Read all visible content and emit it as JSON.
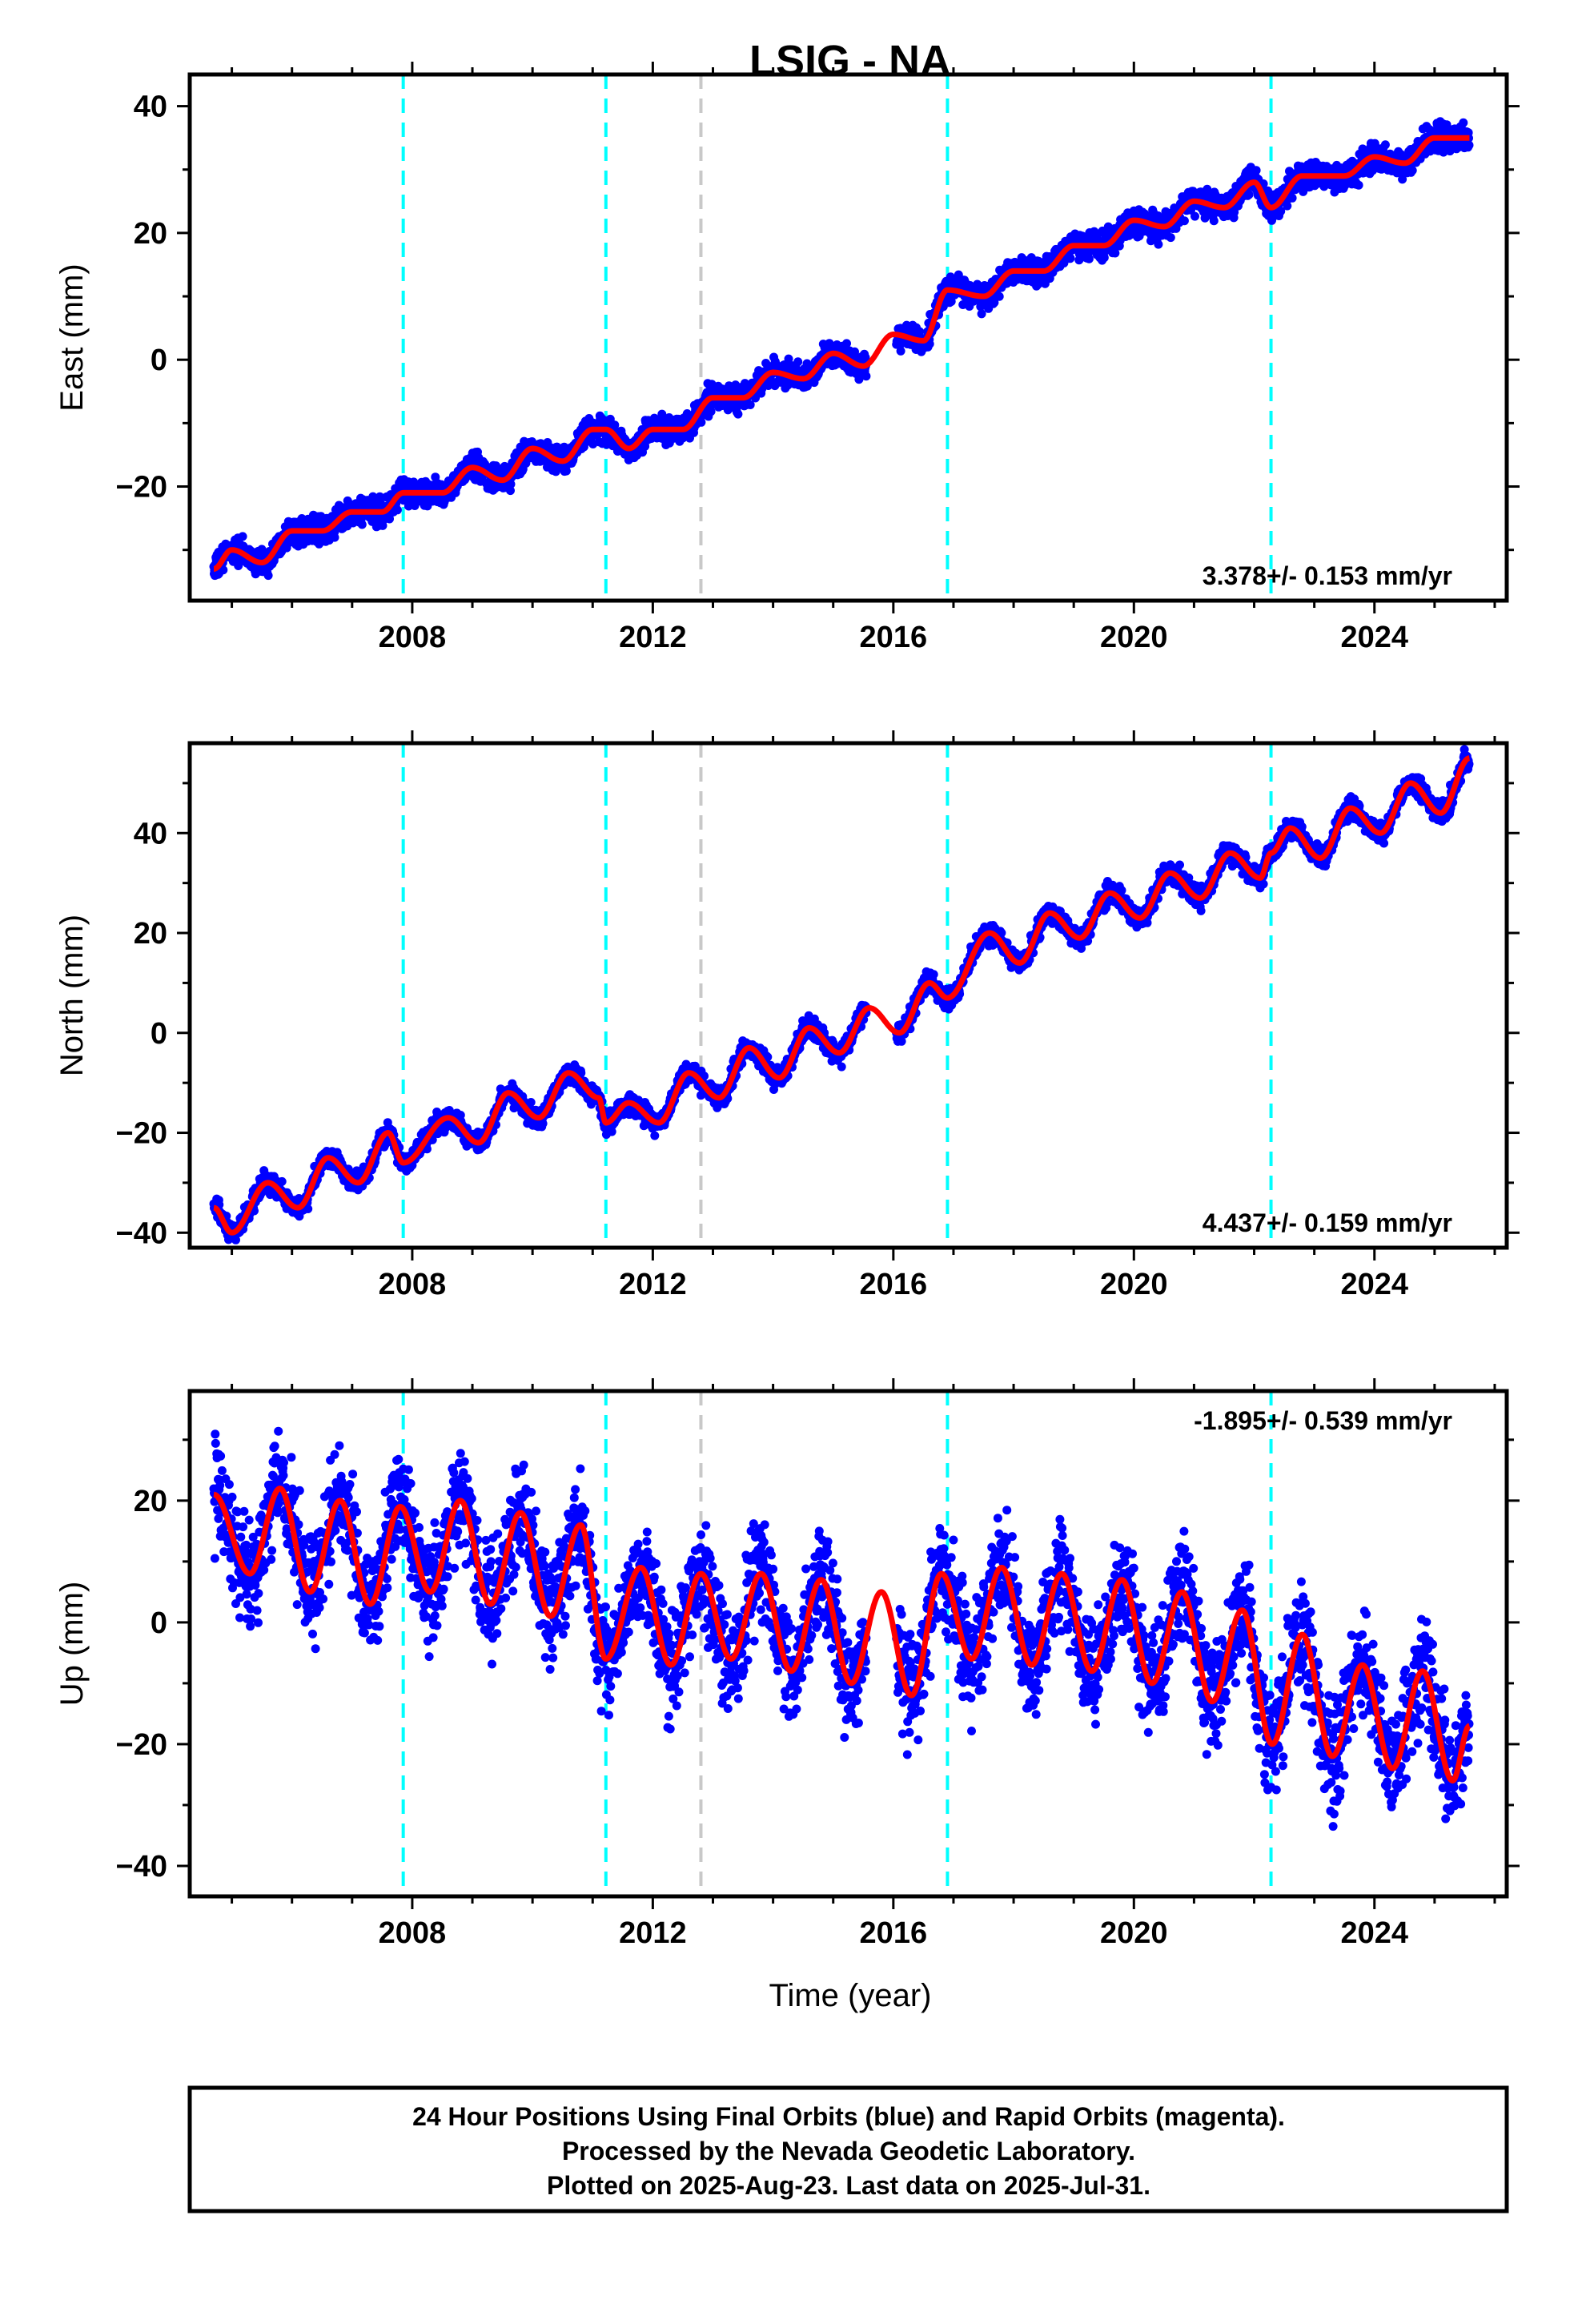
{
  "title": "LSIG - NA",
  "xlabel": "Time (year)",
  "footer": {
    "line1": "24 Hour Positions Using Final Orbits (blue) and Rapid Orbits (magenta).",
    "line2": "Processed by the Nevada Geodetic Laboratory.",
    "line3": "Plotted on 2025-Aug-23. Last data on 2025-Jul-31."
  },
  "colors": {
    "data": "#0000ff",
    "model": "#ff0000",
    "equipment_change": "#00ffff",
    "earthquake": "#c8c8c8",
    "frame": "#000000"
  },
  "chart_data": [
    {
      "type": "scatter",
      "component": "east",
      "ylabel": "East (mm)",
      "rate_text": "3.378+/- 0.153 mm/yr",
      "xlim": [
        2004.3,
        2026.2
      ],
      "ylim": [
        -38,
        45
      ],
      "xticks": [
        2008,
        2012,
        2016,
        2020,
        2024
      ],
      "xtick_labels": [
        "2008",
        "2012",
        "2016",
        "2020",
        "2024"
      ],
      "yticks": [
        -20,
        0,
        20,
        40
      ],
      "ytick_labels": [
        "−20",
        "0",
        "20",
        "40"
      ],
      "cyan_lines": [
        2007.85,
        2011.22,
        2016.9,
        2022.28
      ],
      "gray_lines": [
        2012.8
      ],
      "x": [
        2004.7,
        2005.0,
        2005.5,
        2006.0,
        2006.5,
        2007.0,
        2007.5,
        2007.85,
        2008.5,
        2009.0,
        2009.5,
        2010.0,
        2010.5,
        2011.0,
        2011.22,
        2011.6,
        2012.0,
        2012.5,
        2013.0,
        2013.5,
        2014.0,
        2014.5,
        2015.0,
        2015.5,
        2016.0,
        2016.5,
        2016.9,
        2017.5,
        2018.0,
        2018.5,
        2019.0,
        2019.5,
        2020.0,
        2020.5,
        2021.0,
        2021.5,
        2022.0,
        2022.28,
        2022.8,
        2023.5,
        2024.0,
        2024.5,
        2025.0,
        2025.58
      ],
      "series": [
        {
          "values": [
            -33,
            -30,
            -32,
            -27,
            -27,
            -24,
            -24,
            -21,
            -21,
            -17,
            -19,
            -14,
            -16,
            -11,
            -11,
            -14,
            -11,
            -11,
            -6,
            -6,
            -2,
            -3,
            1,
            -1,
            4,
            3,
            11,
            10,
            14,
            14,
            18,
            18,
            22,
            21,
            25,
            24,
            28,
            24,
            29,
            29,
            32,
            31,
            35,
            35
          ]
        }
      ]
    },
    {
      "type": "scatter",
      "component": "north",
      "ylabel": "North (mm)",
      "rate_text": "4.437+/- 0.159 mm/yr",
      "xlim": [
        2004.3,
        2026.2
      ],
      "ylim": [
        -43,
        58
      ],
      "xticks": [
        2008,
        2012,
        2016,
        2020,
        2024
      ],
      "xtick_labels": [
        "2008",
        "2012",
        "2016",
        "2020",
        "2024"
      ],
      "yticks": [
        -40,
        -20,
        0,
        20,
        40
      ],
      "ytick_labels": [
        "−40",
        "−20",
        "0",
        "20",
        "40"
      ],
      "cyan_lines": [
        2007.85,
        2011.22,
        2016.9,
        2022.28
      ],
      "gray_lines": [
        2012.8
      ],
      "x": [
        2004.7,
        2005.0,
        2005.6,
        2006.1,
        2006.6,
        2007.1,
        2007.6,
        2007.85,
        2008.6,
        2009.1,
        2009.6,
        2010.1,
        2010.6,
        2011.1,
        2011.22,
        2011.6,
        2012.1,
        2012.6,
        2013.1,
        2013.6,
        2014.1,
        2014.6,
        2015.1,
        2015.6,
        2016.1,
        2016.6,
        2016.9,
        2017.6,
        2018.1,
        2018.6,
        2019.1,
        2019.6,
        2020.1,
        2020.6,
        2021.1,
        2021.6,
        2022.1,
        2022.28,
        2022.6,
        2023.1,
        2023.6,
        2024.1,
        2024.6,
        2025.1,
        2025.58
      ],
      "series": [
        {
          "values": [
            -35,
            -40,
            -30,
            -35,
            -25,
            -30,
            -20,
            -26,
            -17,
            -22,
            -12,
            -17,
            -8,
            -13,
            -18,
            -14,
            -18,
            -8,
            -13,
            -3,
            -9,
            1,
            -4,
            5,
            0,
            10,
            7,
            20,
            14,
            24,
            19,
            28,
            23,
            32,
            27,
            36,
            31,
            36,
            41,
            35,
            45,
            40,
            50,
            44,
            55
          ]
        }
      ]
    },
    {
      "type": "scatter",
      "component": "up",
      "ylabel": "Up (mm)",
      "rate_text": "-1.895+/- 0.539 mm/yr",
      "xlim": [
        2004.3,
        2026.2
      ],
      "ylim": [
        -45,
        38
      ],
      "xticks": [
        2008,
        2012,
        2016,
        2020,
        2024
      ],
      "xtick_labels": [
        "2008",
        "2012",
        "2016",
        "2020",
        "2024"
      ],
      "yticks": [
        -40,
        -20,
        0,
        20
      ],
      "ytick_labels": [
        "−40",
        "−20",
        "0",
        "20"
      ],
      "cyan_lines": [
        2007.85,
        2011.22,
        2016.9,
        2022.28
      ],
      "gray_lines": [
        2012.8
      ],
      "x": [
        2004.7,
        2005.3,
        2005.8,
        2006.3,
        2006.8,
        2007.3,
        2007.8,
        2008.3,
        2008.8,
        2009.3,
        2009.8,
        2010.3,
        2010.8,
        2011.22,
        2011.8,
        2012.3,
        2012.8,
        2013.3,
        2013.8,
        2014.3,
        2014.8,
        2015.3,
        2015.8,
        2016.3,
        2016.8,
        2017.3,
        2017.8,
        2018.3,
        2018.8,
        2019.3,
        2019.8,
        2020.3,
        2020.8,
        2021.3,
        2021.8,
        2022.3,
        2022.8,
        2023.3,
        2023.8,
        2024.3,
        2024.8,
        2025.3,
        2025.58
      ],
      "series": [
        {
          "values": [
            21,
            8,
            22,
            5,
            20,
            3,
            19,
            5,
            20,
            3,
            18,
            1,
            16,
            -6,
            9,
            -7,
            8,
            -6,
            8,
            -8,
            7,
            -10,
            5,
            -12,
            8,
            -6,
            9,
            -7,
            8,
            -8,
            7,
            -10,
            5,
            -13,
            2,
            -20,
            -2,
            -22,
            -7,
            -24,
            -8,
            -26,
            -17
          ]
        }
      ]
    }
  ]
}
